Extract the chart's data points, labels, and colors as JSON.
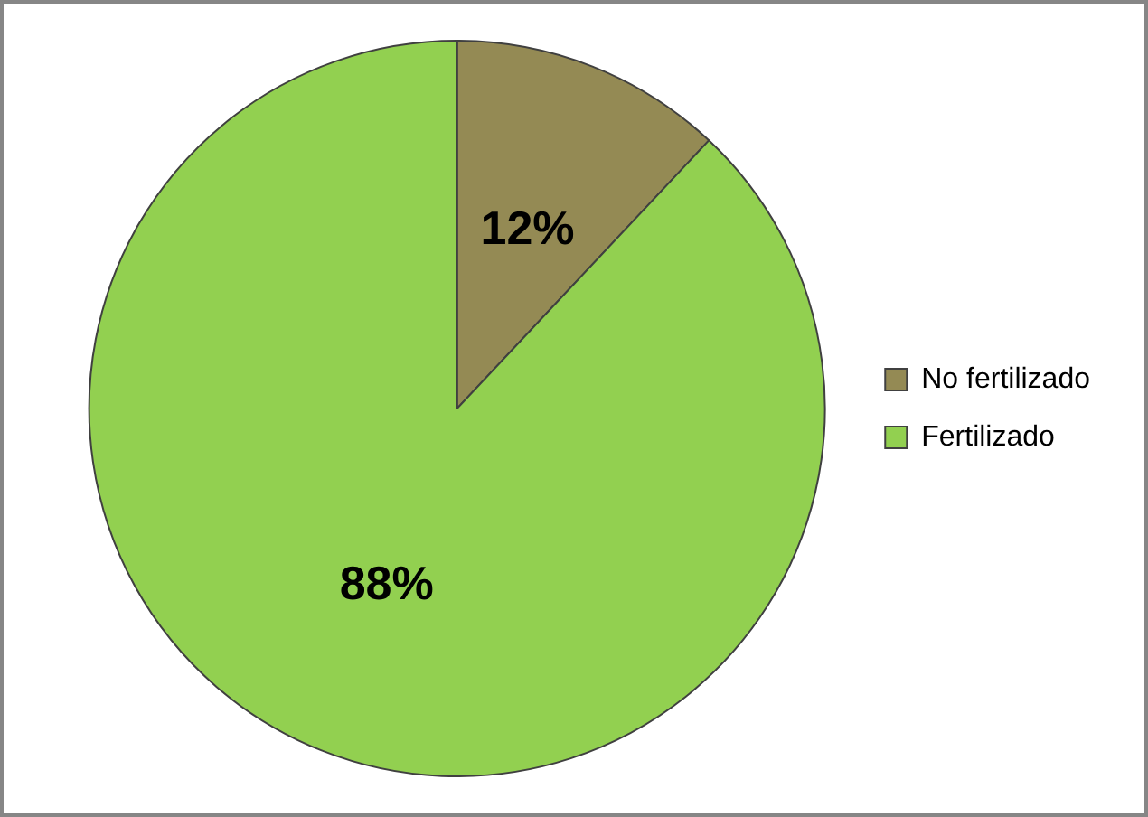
{
  "chart_data": {
    "type": "pie",
    "categories": [
      "No fertilizado",
      "Fertilizado"
    ],
    "values": [
      12,
      88
    ],
    "colors": [
      "#948a54",
      "#92d050"
    ],
    "value_labels": [
      "12%",
      "88%"
    ],
    "legend": "right"
  }
}
